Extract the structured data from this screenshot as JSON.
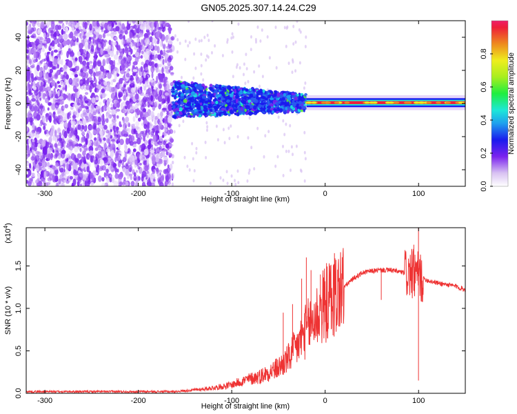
{
  "title": "GN05.2025.307.14.24.C29",
  "chart_data": [
    {
      "id": "spectrogram",
      "type": "heatmap",
      "xlabel": "Height of straight line (km)",
      "ylabel": "Frequency (Hz)",
      "xlim": [
        -320,
        150
      ],
      "ylim": [
        -50,
        50
      ],
      "xticks": [
        -300,
        -200,
        -100,
        0,
        100
      ],
      "xtick_labels": [
        "-300",
        "-200",
        "-100",
        "0",
        "100"
      ],
      "yticks": [
        -40,
        -20,
        0,
        20,
        40
      ],
      "ytick_labels": [
        "-40",
        "-20",
        "0",
        "20",
        "40"
      ],
      "colorbar": {
        "label": "Normalized spectral amplitude",
        "range": [
          0,
          1
        ],
        "ticks": [
          0.0,
          0.2,
          0.4,
          0.6,
          0.8
        ],
        "tick_labels": [
          "0.0",
          "0.2",
          "0.4",
          "0.6",
          "0.8"
        ]
      },
      "regions": [
        {
          "x_range": [
            -320,
            -163
          ],
          "freq_range": [
            -50,
            50
          ],
          "amplitude": 0.15,
          "description_pattern": "noise"
        },
        {
          "x_range": [
            -163,
            -20
          ],
          "freq_range": [
            -10,
            12
          ],
          "amplitude": 0.3
        },
        {
          "x_range": [
            -20,
            150
          ],
          "freq_range": [
            -2,
            3
          ],
          "amplitude": 0.95
        }
      ]
    },
    {
      "id": "snr",
      "type": "line",
      "xlabel": "Height of straight line (km)",
      "ylabel": "SNR (10 * v/v)",
      "multiplier": "(x10",
      "multiplier_exp": "4",
      "multiplier_close": ")",
      "xlim": [
        -320,
        150
      ],
      "ylim": [
        0,
        1.95
      ],
      "xticks": [
        -300,
        -200,
        -100,
        0,
        100
      ],
      "xtick_labels": [
        "-300",
        "-200",
        "-100",
        "0",
        "100"
      ],
      "yticks": [
        0.0,
        0.5,
        1.0,
        1.5
      ],
      "ytick_labels": [
        "0.0",
        "0.5",
        "1.0",
        "1.5"
      ],
      "series": [
        {
          "color": "#ee3333",
          "x": [
            -320,
            -250,
            -200,
            -160,
            -150,
            -130,
            -110,
            -100,
            -90,
            -70,
            -50,
            -40,
            -30,
            -20,
            -10,
            0,
            10,
            20,
            30,
            40,
            50,
            60,
            70,
            80,
            90,
            95,
            100,
            105,
            110,
            120,
            130,
            140,
            150
          ],
          "y": [
            0.02,
            0.02,
            0.02,
            0.02,
            0.03,
            0.05,
            0.08,
            0.1,
            0.14,
            0.2,
            0.3,
            0.4,
            0.55,
            0.75,
            0.9,
            1.05,
            1.15,
            1.25,
            1.35,
            1.42,
            1.44,
            1.45,
            1.45,
            1.43,
            1.4,
            1.4,
            1.38,
            1.35,
            1.33,
            1.3,
            1.28,
            1.26,
            1.22
          ],
          "spikes": [
            [
              -45,
              0.95
            ],
            [
              -35,
              1.05
            ],
            [
              -25,
              1.35
            ],
            [
              -20,
              1.6
            ],
            [
              -15,
              1.45
            ],
            [
              -5,
              1.4
            ],
            [
              10,
              1.65
            ],
            [
              60,
              1.1
            ],
            [
              95,
              1.75
            ],
            [
              100,
              1.98
            ],
            [
              100,
              0.15
            ]
          ]
        }
      ]
    }
  ]
}
